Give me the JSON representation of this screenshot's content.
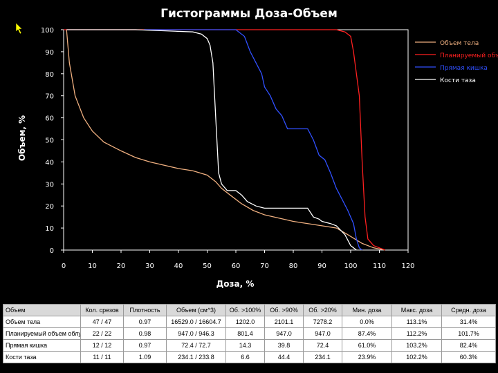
{
  "page": {
    "title": "Гистограммы Доза-Объем"
  },
  "chart_data": {
    "type": "line",
    "xlabel": "Доза, %",
    "ylabel": "Объем, %",
    "xlim": [
      0,
      120
    ],
    "ylim": [
      0,
      100
    ],
    "x_ticks": [
      "0",
      "10",
      "20",
      "30",
      "40",
      "50",
      "60",
      "70",
      "80",
      "90",
      "100",
      "110",
      "120"
    ],
    "y_ticks": [
      "0",
      "10",
      "20",
      "30",
      "40",
      "50",
      "60",
      "70",
      "80",
      "90",
      "100"
    ],
    "grid": false,
    "legend_position": "top-right",
    "series": [
      {
        "name": "Объем тела",
        "color": "#f0b080",
        "points": [
          [
            1,
            100
          ],
          [
            2,
            85
          ],
          [
            4,
            70
          ],
          [
            7,
            60
          ],
          [
            10,
            54
          ],
          [
            14,
            49
          ],
          [
            20,
            45
          ],
          [
            25,
            42
          ],
          [
            30,
            40
          ],
          [
            40,
            37
          ],
          [
            45,
            36
          ],
          [
            50,
            34
          ],
          [
            53,
            31
          ],
          [
            55,
            28
          ],
          [
            58,
            25
          ],
          [
            62,
            21
          ],
          [
            66,
            18
          ],
          [
            70,
            16
          ],
          [
            80,
            13
          ],
          [
            90,
            11
          ],
          [
            95,
            10
          ],
          [
            99,
            7
          ],
          [
            104,
            3
          ],
          [
            108,
            1
          ],
          [
            112,
            0
          ]
        ]
      },
      {
        "name": "Планируемый объем",
        "color": "#ff2020",
        "points": [
          [
            0,
            100
          ],
          [
            95,
            100
          ],
          [
            98,
            99
          ],
          [
            100,
            97
          ],
          [
            101,
            90
          ],
          [
            102,
            80
          ],
          [
            103,
            70
          ],
          [
            104,
            40
          ],
          [
            105,
            15
          ],
          [
            106,
            5
          ],
          [
            108,
            2
          ],
          [
            110,
            1
          ],
          [
            112,
            0
          ]
        ]
      },
      {
        "name": "Прямая кишка",
        "color": "#3050ff",
        "points": [
          [
            28,
            100
          ],
          [
            60,
            100
          ],
          [
            63,
            97
          ],
          [
            65,
            90
          ],
          [
            67,
            85
          ],
          [
            69,
            80
          ],
          [
            70,
            74
          ],
          [
            72,
            70
          ],
          [
            74,
            64
          ],
          [
            76,
            61
          ],
          [
            78,
            55
          ],
          [
            85,
            55
          ],
          [
            87,
            50
          ],
          [
            89,
            43
          ],
          [
            91,
            41
          ],
          [
            93,
            35
          ],
          [
            95,
            28
          ],
          [
            97,
            23
          ],
          [
            99,
            18
          ],
          [
            101,
            12
          ],
          [
            102,
            5
          ],
          [
            103,
            1
          ],
          [
            104,
            0
          ]
        ]
      },
      {
        "name": "Кости таза",
        "color": "#ffffff",
        "points": [
          [
            1,
            100
          ],
          [
            25,
            100
          ],
          [
            45,
            99
          ],
          [
            48,
            98
          ],
          [
            50,
            96
          ],
          [
            51,
            93
          ],
          [
            52,
            85
          ],
          [
            53,
            60
          ],
          [
            54,
            35
          ],
          [
            55,
            30
          ],
          [
            57,
            27
          ],
          [
            60,
            27
          ],
          [
            62,
            25
          ],
          [
            64,
            22
          ],
          [
            67,
            20
          ],
          [
            70,
            19
          ],
          [
            85,
            19
          ],
          [
            87,
            15
          ],
          [
            89,
            14
          ],
          [
            90,
            13
          ],
          [
            93,
            12
          ],
          [
            95,
            11
          ],
          [
            98,
            7
          ],
          [
            100,
            2
          ],
          [
            102,
            0
          ]
        ]
      }
    ]
  },
  "table": {
    "headers": [
      "Объем",
      "Кол. срезов",
      "Плотность",
      "Объем (см^3)",
      "Об. >100%",
      "Об. >90%",
      "Об. >20%",
      "Мин. доза",
      "Макс. доза",
      "Средн. доза"
    ],
    "rows": [
      [
        "Объем тела",
        "47 / 47",
        "0.97",
        "16529.0 / 16604.7",
        "1202.0",
        "2101.1",
        "7278.2",
        "0.0%",
        "113.1%",
        "31.4%"
      ],
      [
        "Планируемый объем облуче",
        "22 / 22",
        "0.98",
        "947.0 / 946.3",
        "801.4",
        "947.0",
        "947.0",
        "87.4%",
        "112.2%",
        "101.7%"
      ],
      [
        "Прямая кишка",
        "12 / 12",
        "0.97",
        "72.4 / 72.7",
        "14.3",
        "39.8",
        "72.4",
        "61.0%",
        "103.2%",
        "82.4%"
      ],
      [
        "Кости таза",
        "11 / 11",
        "1.09",
        "234.1 / 233.8",
        "6.6",
        "44.4",
        "234.1",
        "23.9%",
        "102.2%",
        "60.3%"
      ]
    ]
  }
}
